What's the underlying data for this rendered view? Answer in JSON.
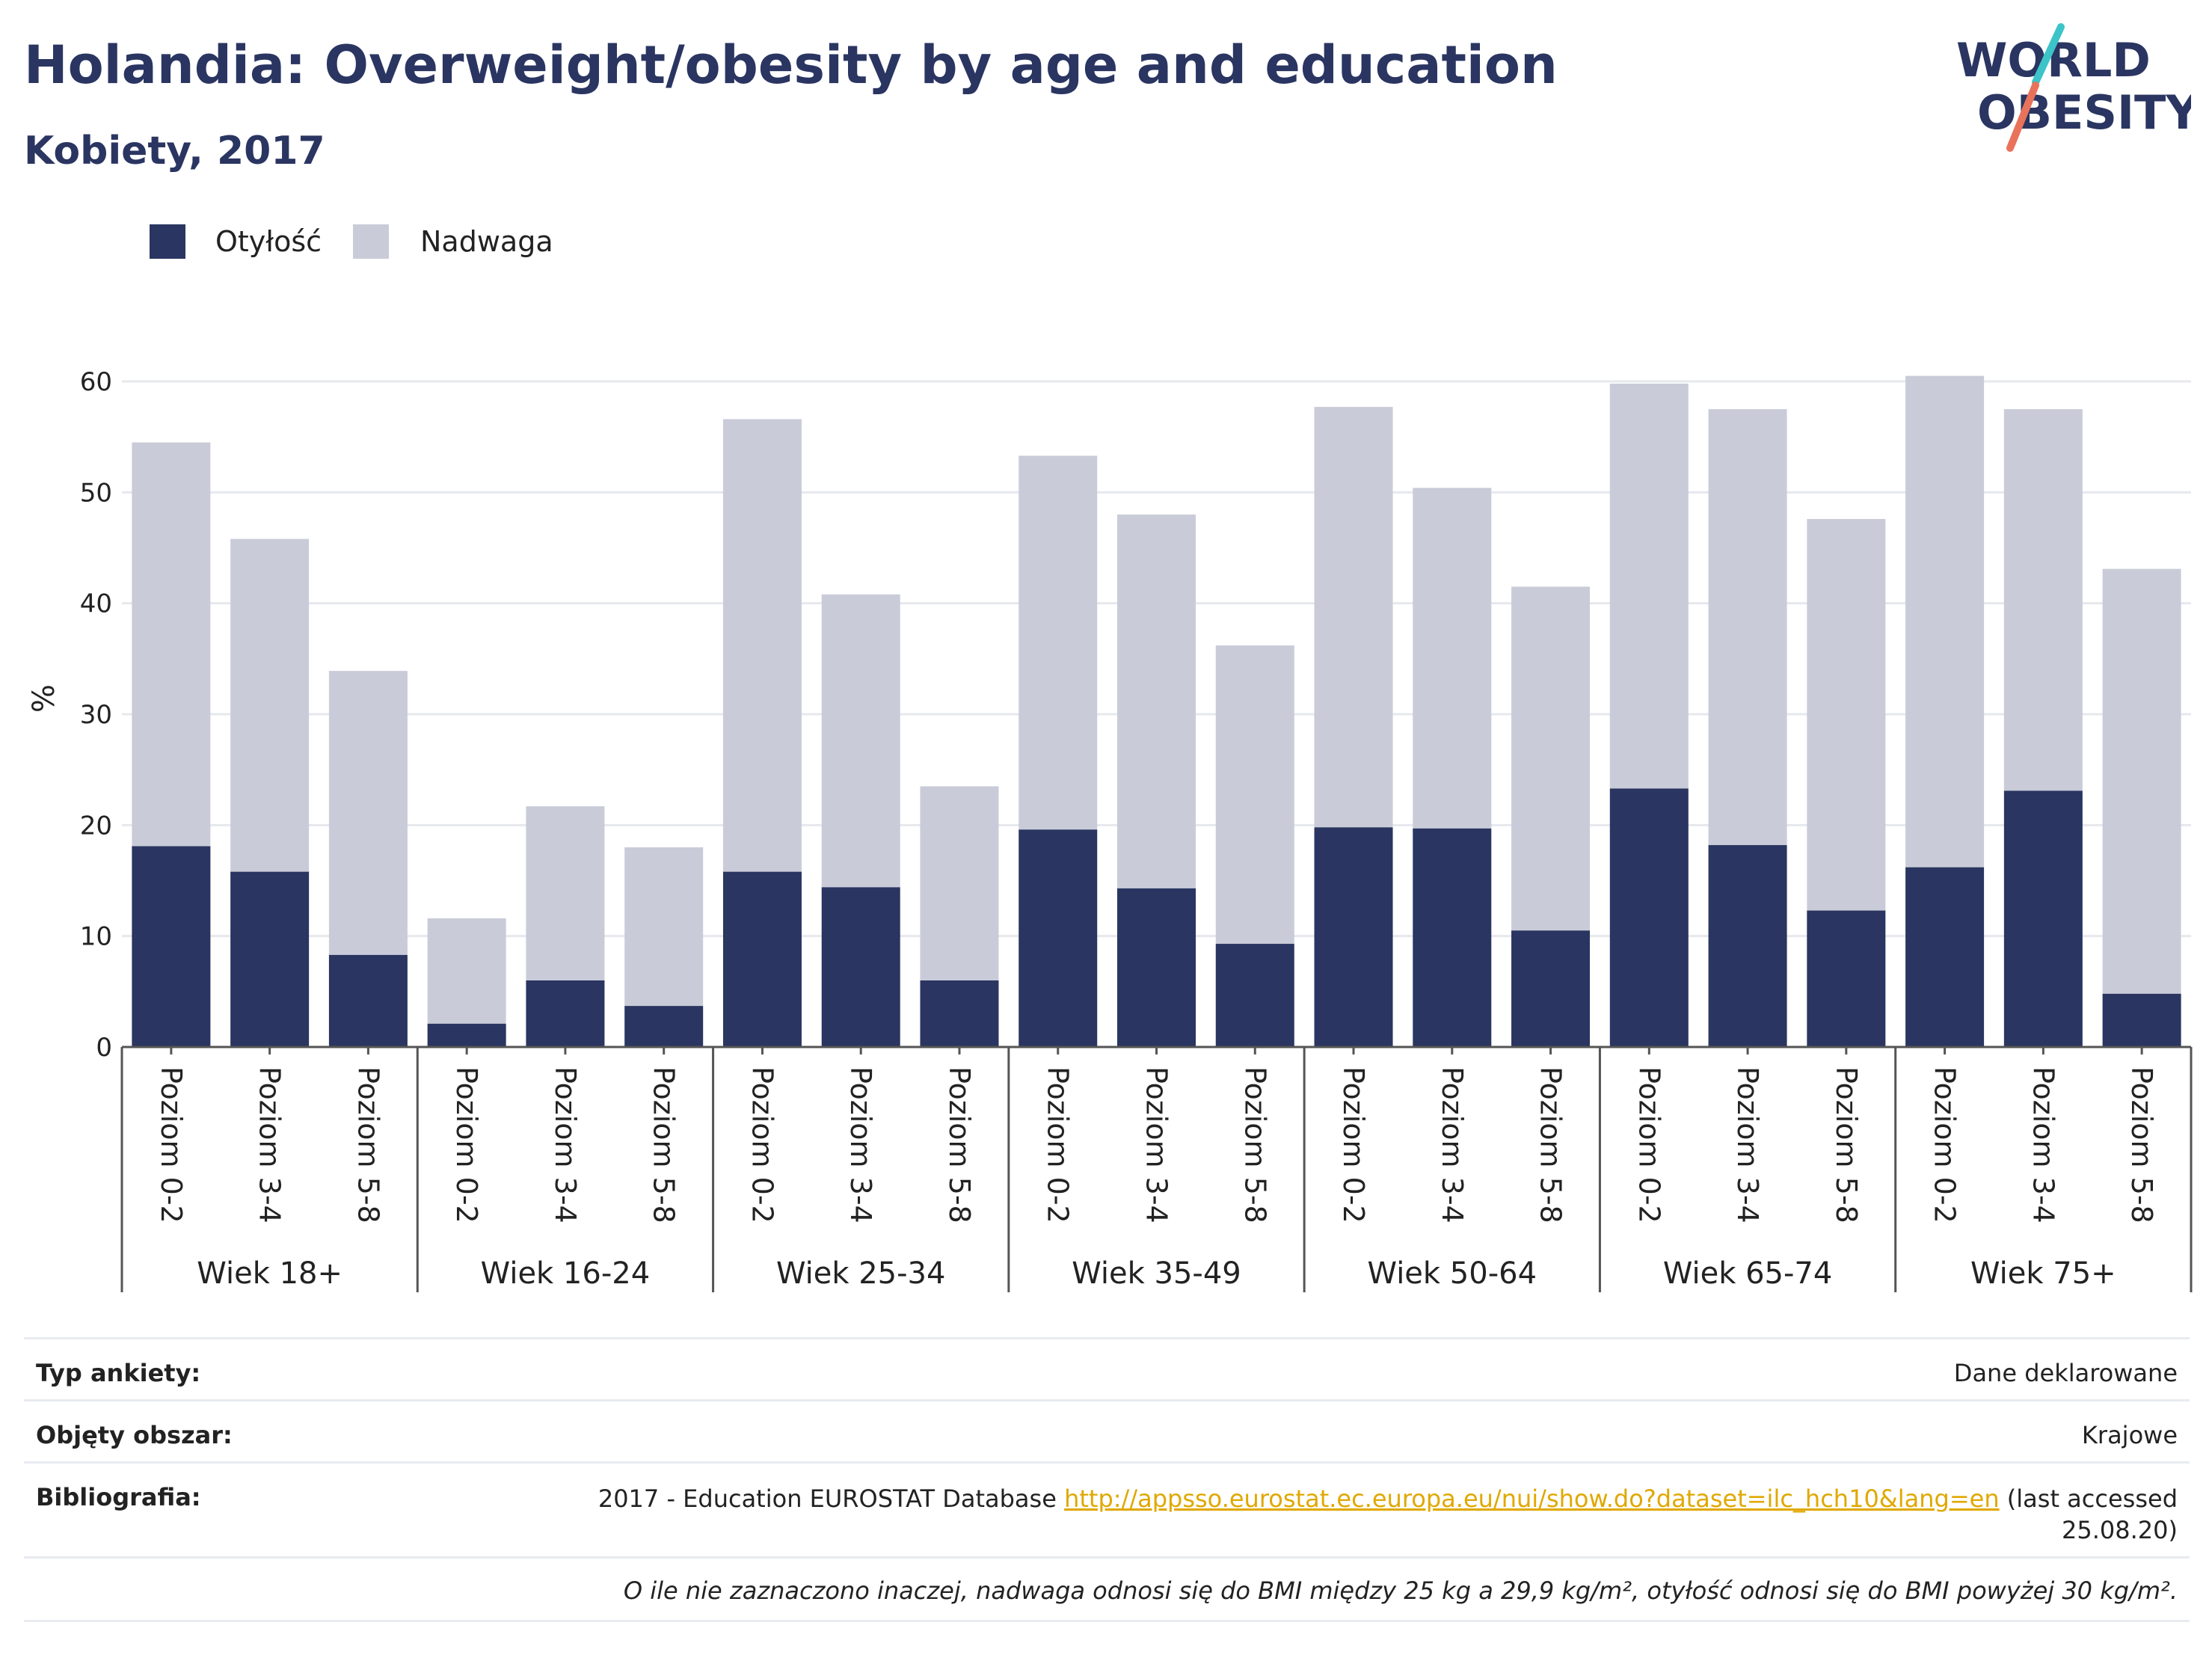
{
  "header": {
    "title": "Holandia: Overweight/obesity by age and education",
    "subtitle": "Kobiety, 2017"
  },
  "logo": {
    "line1": "WORLD",
    "line2": "OBESITY",
    "colors": {
      "text": "#2a3561",
      "slash_top": "#3cc4c8",
      "slash_bottom": "#e8735a"
    }
  },
  "legend": [
    {
      "label": "Otyłość",
      "color": "#2a3561"
    },
    {
      "label": "Nadwaga",
      "color": "#c9ccd8"
    }
  ],
  "chart_data": {
    "type": "bar",
    "stacked": true,
    "ylabel": "%",
    "ylim": [
      0,
      60
    ],
    "yticks": [
      0,
      10,
      20,
      30,
      40,
      50,
      60
    ],
    "grid": true,
    "groups": [
      {
        "label": "Wiek 18+",
        "categories": [
          "Poziom 0-2",
          "Poziom 3-4",
          "Poziom 5-8"
        ],
        "obesity": [
          18.1,
          15.8,
          8.3
        ],
        "total": [
          54.5,
          45.8,
          33.9
        ]
      },
      {
        "label": "Wiek 16-24",
        "categories": [
          "Poziom 0-2",
          "Poziom 3-4",
          "Poziom 5-8"
        ],
        "obesity": [
          2.1,
          6.0,
          3.7
        ],
        "total": [
          11.6,
          21.7,
          18.0
        ]
      },
      {
        "label": "Wiek 25-34",
        "categories": [
          "Poziom 0-2",
          "Poziom 3-4",
          "Poziom 5-8"
        ],
        "obesity": [
          15.8,
          14.4,
          6.0
        ],
        "total": [
          56.6,
          40.8,
          23.5
        ]
      },
      {
        "label": "Wiek 35-49",
        "categories": [
          "Poziom 0-2",
          "Poziom 3-4",
          "Poziom 5-8"
        ],
        "obesity": [
          19.6,
          14.3,
          9.3
        ],
        "total": [
          53.3,
          48.0,
          36.2
        ]
      },
      {
        "label": "Wiek 50-64",
        "categories": [
          "Poziom 0-2",
          "Poziom 3-4",
          "Poziom 5-8"
        ],
        "obesity": [
          19.8,
          19.7,
          10.5
        ],
        "total": [
          57.7,
          50.4,
          41.5
        ]
      },
      {
        "label": "Wiek 65-74",
        "categories": [
          "Poziom 0-2",
          "Poziom 3-4",
          "Poziom 5-8"
        ],
        "obesity": [
          23.3,
          18.2,
          12.3
        ],
        "total": [
          59.8,
          57.5,
          47.6
        ]
      },
      {
        "label": "Wiek 75+",
        "categories": [
          "Poziom 0-2",
          "Poziom 3-4",
          "Poziom 5-8"
        ],
        "obesity": [
          16.2,
          23.1,
          4.8
        ],
        "total": [
          60.5,
          57.5,
          43.1
        ]
      }
    ],
    "series": [
      {
        "name": "Otyłość",
        "color": "#2a3561"
      },
      {
        "name": "Nadwaga",
        "color": "#c9ccd8"
      }
    ]
  },
  "info": {
    "survey_key": "Typ ankiety:",
    "survey_val": "Dane deklarowane",
    "area_key": "Objęty obszar:",
    "area_val": "Krajowe",
    "biblio_key": "Bibliografia:",
    "biblio_prefix": "2017 - Education EUROSTAT Database ",
    "biblio_link": "http://appsso.eurostat.ec.europa.eu/nui/show.do?dataset=ilc_hch10&lang=en",
    "biblio_suffix": " (last accessed",
    "biblio_date": "25.08.20)",
    "note": "O ile nie zaznaczono inaczej, nadwaga odnosi się do BMI między 25 kg a 29,9 kg/m², otyłość odnosi się do BMI powyżej 30 kg/m²."
  }
}
